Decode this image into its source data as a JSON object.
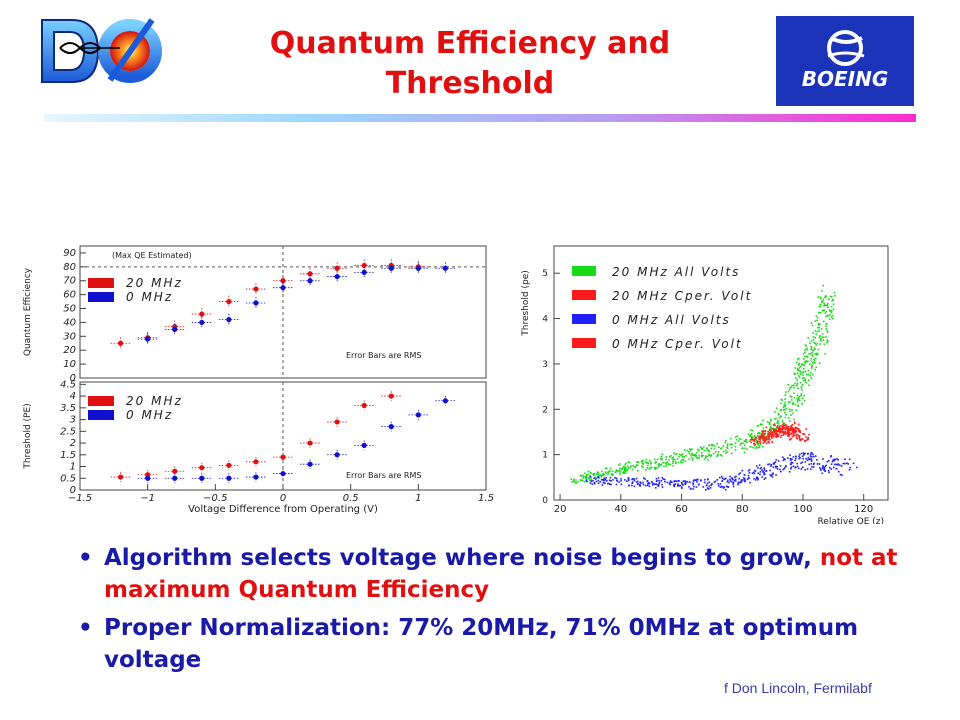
{
  "slide": {
    "title_line1": "Quantum Efficiency and",
    "title_line2": "Threshold",
    "logo_boeing_text": "BOEING",
    "bullet_symbol": "•",
    "bullets": [
      {
        "part1": "Algorithm selects voltage where noise begins to grow, ",
        "part2": "not at maximum Quantum Efficiency"
      },
      {
        "part1": "Proper Normalization: 77% 20MHz, 71% 0MHz at optimum voltage",
        "part2": ""
      }
    ],
    "credit": "f Don Lincoln, Fermilabf",
    "colors": {
      "title": "#e01010",
      "bullet_text": "#1a1aa8",
      "highlight": "#e01010"
    }
  },
  "chart_data": [
    {
      "type": "scatter",
      "panel": "top-left",
      "ylabel": "Quantum Efficiency",
      "xlabel": "",
      "yticks": [
        0,
        10,
        20,
        30,
        40,
        50,
        60,
        70,
        80,
        90
      ],
      "ylim": [
        0,
        95
      ],
      "xlim": [
        -1.5,
        1.5
      ],
      "annotation_top": "(Max QE Estimated)",
      "annotation": "Error Bars are RMS",
      "legend": [
        "20 MHz",
        "0 MHz"
      ],
      "series": [
        {
          "name": "20 MHz",
          "color": "#e01010",
          "x": [
            -1.2,
            -1.0,
            -0.8,
            -0.6,
            -0.4,
            -0.2,
            0.0,
            0.2,
            0.4,
            0.6,
            0.8,
            1.0
          ],
          "y": [
            25,
            29,
            37,
            46,
            55,
            64,
            70,
            75,
            79,
            81,
            81,
            80
          ]
        },
        {
          "name": "0 MHz",
          "color": "#1010d0",
          "x": [
            -1.0,
            -0.8,
            -0.6,
            -0.4,
            -0.2,
            0.0,
            0.2,
            0.4,
            0.6,
            0.8,
            1.0,
            1.2
          ],
          "y": [
            28,
            35,
            40,
            42,
            54,
            65,
            70,
            73,
            76,
            79,
            79,
            79
          ]
        }
      ]
    },
    {
      "type": "scatter",
      "panel": "bottom-left",
      "ylabel": "Threshold (PE)",
      "xlabel": "Voltage Difference from Operating (V)",
      "yticks": [
        0,
        0.5,
        1,
        1.5,
        2,
        2.5,
        3,
        3.5,
        4,
        4.5
      ],
      "xticks": [
        -1.5,
        -1,
        -0.5,
        0,
        0.5,
        1,
        1.5
      ],
      "ylim": [
        0,
        4.6
      ],
      "xlim": [
        -1.5,
        1.5
      ],
      "annotation": "Error Bars are RMS",
      "legend": [
        "20 MHz",
        "0 MHz"
      ],
      "series": [
        {
          "name": "20 MHz",
          "color": "#e01010",
          "x": [
            -1.2,
            -1.0,
            -0.8,
            -0.6,
            -0.4,
            -0.2,
            0.0,
            0.2,
            0.4,
            0.6,
            0.8
          ],
          "y": [
            0.55,
            0.65,
            0.8,
            0.95,
            1.05,
            1.2,
            1.4,
            2.0,
            2.9,
            3.6,
            4.0
          ]
        },
        {
          "name": "0 MHz",
          "color": "#1010d0",
          "x": [
            -1.0,
            -0.8,
            -0.6,
            -0.4,
            -0.2,
            0.0,
            0.2,
            0.4,
            0.6,
            0.8,
            1.0,
            1.2
          ],
          "y": [
            0.5,
            0.5,
            0.5,
            0.5,
            0.55,
            0.7,
            1.1,
            1.5,
            1.9,
            2.7,
            3.2,
            3.8
          ]
        }
      ]
    },
    {
      "type": "scatter",
      "panel": "right",
      "ylabel": "Threshold (pe)",
      "xlabel": "Relative QE (z)",
      "xticks": [
        20,
        40,
        60,
        80,
        100,
        120
      ],
      "yticks": [
        0,
        1,
        2,
        3,
        4,
        5
      ],
      "xlim": [
        18,
        128
      ],
      "ylim": [
        0,
        5.6
      ],
      "legend": [
        "20 MHz All Volts",
        "20 MHz Cper. Volt",
        "0 MHz All Volts",
        "0 MHz Cper. Volt"
      ],
      "legend_colors": [
        "#19d919",
        "#ff1a1a",
        "#2020ff",
        "#ff1a1a"
      ],
      "clusters": [
        {
          "name": "20 MHz All Volts",
          "color": "#19d919",
          "x": [
            25,
            40,
            55,
            70,
            85,
            95,
            100,
            105,
            108
          ],
          "y": [
            0.45,
            0.7,
            0.9,
            1.1,
            1.35,
            2.0,
            2.8,
            3.6,
            4.6
          ]
        },
        {
          "name": "0 MHz All Volts",
          "color": "#2020ff",
          "x": [
            30,
            50,
            70,
            85,
            100,
            115
          ],
          "y": [
            0.45,
            0.4,
            0.35,
            0.6,
            0.9,
            0.7
          ]
        },
        {
          "name": "20 MHz Cper. Volt",
          "color": "#ff1a1a",
          "x": [
            85,
            90,
            95,
            100
          ],
          "y": [
            1.3,
            1.5,
            1.6,
            1.4
          ]
        }
      ]
    }
  ]
}
